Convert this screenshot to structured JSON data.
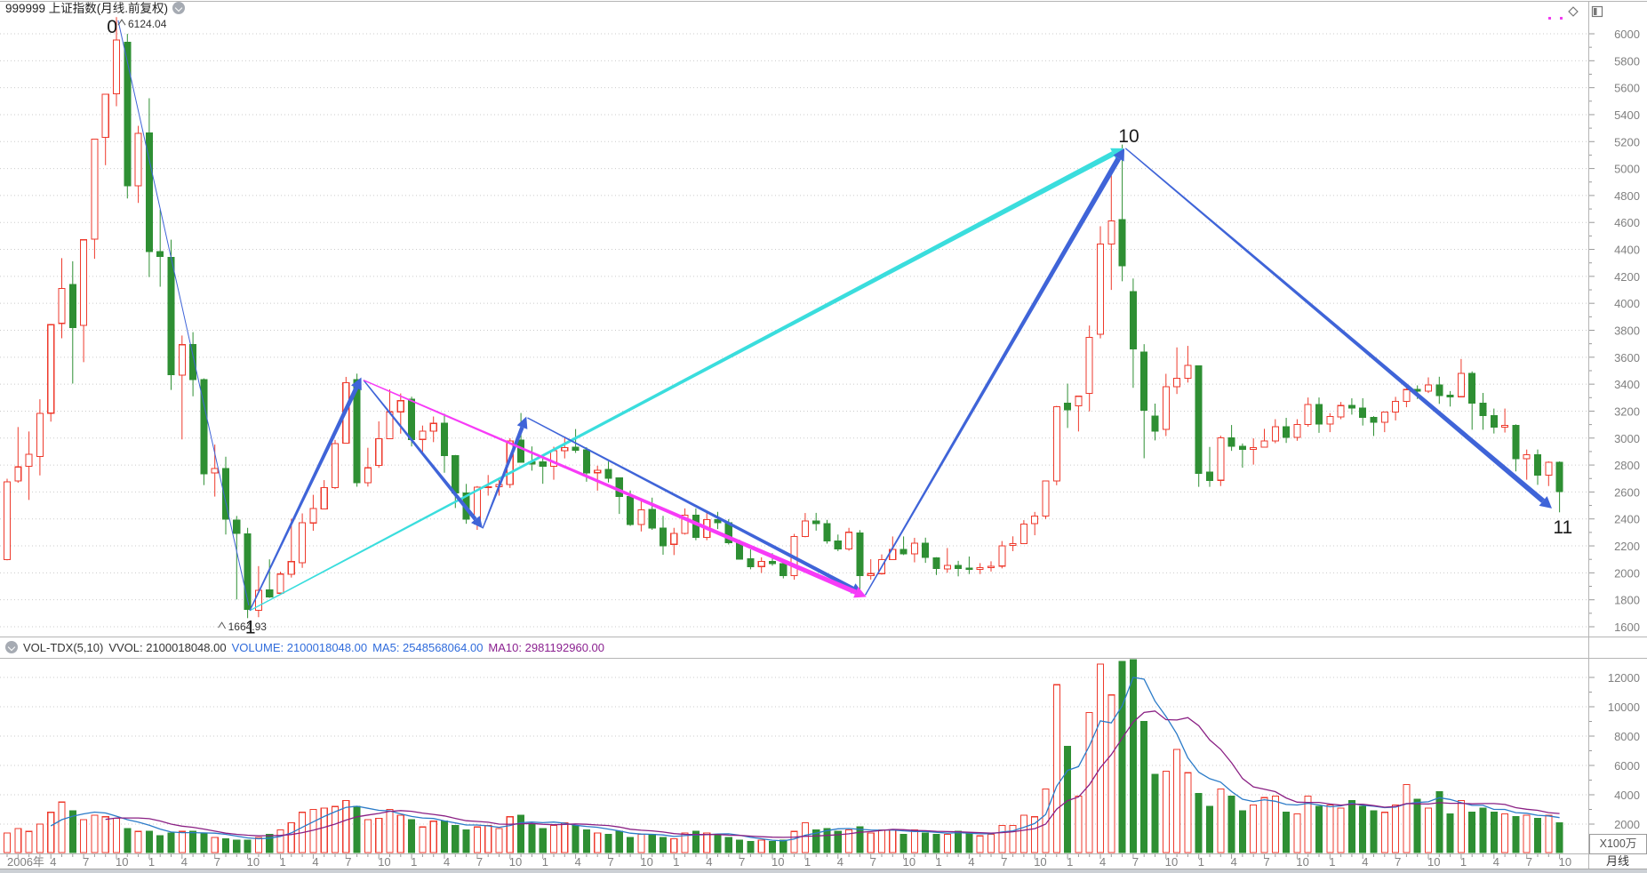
{
  "window": {
    "title": "999999 上证指数(月线.前复权)"
  },
  "volume_panel": {
    "header": {
      "indicator": "VOL-TDX(5,10)",
      "vvol": "VVOL: 2100018048.00",
      "volume": "VOLUME: 2100018048.00",
      "ma5": "MA5: 2548568064.00",
      "ma10": "MA10: 2981192960.00"
    },
    "unit_label": "X100万",
    "period_label": "月线"
  },
  "chart_data": {
    "type": "candlestick",
    "symbol": "999999",
    "name": "上证指数",
    "period": "月线",
    "adjust": "前复权",
    "grid": "horizontal-dotted",
    "price_axis": {
      "min": 1600,
      "max": 6000,
      "step": 200,
      "minor_step": 100
    },
    "volume_axis": {
      "min": 2000,
      "max": 12000,
      "step": 2000,
      "unit": "X100万"
    },
    "colors": {
      "up": "#ee3a2c",
      "down": "#2e8f33",
      "arrow_blue": "#3f64d8",
      "arrow_cyan": "#3adddd",
      "arrow_magenta": "#f73bf7",
      "vol_ma5": "#2b7bc8",
      "vol_ma10": "#8a2084",
      "grid": "#cbcbcb",
      "axis_text": "#808080",
      "tick": "#999999",
      "marker_text": "#333333",
      "point_label": "#1a1a1a"
    },
    "high_marker": {
      "month_index": 10,
      "price": 6124.04,
      "text": "6124.04"
    },
    "low_marker": {
      "month_index": 22,
      "price": 1664.93,
      "text": "1664.93"
    },
    "point_labels": [
      {
        "text": "0",
        "i": 9.6,
        "p": 6007
      },
      {
        "text": "1",
        "i": 22.25,
        "p": 1549
      },
      {
        "text": "10",
        "i": 102.6,
        "p": 5196
      },
      {
        "text": "11",
        "i": 142.3,
        "p": 2294
      }
    ],
    "annotations": [
      {
        "type": "line",
        "color": "arrow_blue",
        "from": [
          10.15,
          6100
        ],
        "to": [
          22.1,
          1760
        ],
        "w": 1
      },
      {
        "type": "arrow",
        "color": "arrow_cyan",
        "from": [
          22.2,
          1720
        ],
        "to": [
          102.1,
          5150
        ],
        "w": 6
      },
      {
        "type": "arrow",
        "color": "arrow_blue",
        "from": [
          22.2,
          1720
        ],
        "to": [
          32.4,
          3450
        ],
        "w": 5
      },
      {
        "type": "arrow",
        "color": "arrow_blue",
        "from": [
          32.6,
          3430
        ],
        "to": [
          43.5,
          2330
        ],
        "w": 4.5
      },
      {
        "type": "arrow",
        "color": "arrow_blue",
        "from": [
          43.5,
          2330
        ],
        "to": [
          47.5,
          3160
        ],
        "w": 4.5
      },
      {
        "type": "arrow",
        "color": "arrow_blue",
        "from": [
          47.6,
          3150
        ],
        "to": [
          78.3,
          1845
        ],
        "w": 4.5
      },
      {
        "type": "arrow",
        "color": "arrow_magenta",
        "from": [
          32.6,
          3430
        ],
        "to": [
          78.6,
          1822
        ],
        "w": 5.5
      },
      {
        "type": "arrow",
        "color": "arrow_blue",
        "from": [
          78.5,
          1835
        ],
        "to": [
          102.2,
          5150
        ],
        "w": 6
      },
      {
        "type": "arrow",
        "color": "arrow_blue",
        "from": [
          102.3,
          5150
        ],
        "to": [
          141.3,
          2478
        ],
        "w": 6
      }
    ],
    "candles": [
      [
        "2006-12",
        2099,
        2698,
        2093,
        2675,
        1400
      ],
      [
        "2007-01",
        2681,
        3082,
        2668,
        2786,
        1700
      ],
      [
        "2007-02",
        2790,
        3049,
        2541,
        2881,
        1500
      ],
      [
        "2007-03",
        2863,
        3288,
        2723,
        3183,
        2000
      ],
      [
        "2007-04",
        3185,
        3847,
        3122,
        3841,
        2800
      ],
      [
        "2007-05",
        3851,
        4335,
        3741,
        4109,
        3500
      ],
      [
        "2007-06",
        4139,
        4312,
        3404,
        3820,
        2900
      ],
      [
        "2007-07",
        3836,
        4471,
        3563,
        4471,
        2300
      ],
      [
        "2007-08",
        4476,
        5218,
        4330,
        5218,
        2600
      ],
      [
        "2007-09",
        5232,
        5552,
        5025,
        5552,
        2500
      ],
      [
        "2007-10",
        5555,
        6124,
        5462,
        5954,
        2400
      ],
      [
        "2007-11",
        5938,
        5999,
        4778,
        4871,
        1700
      ],
      [
        "2007-12",
        4871,
        5317,
        4745,
        5261,
        1500
      ],
      [
        "2008-01",
        5265,
        5522,
        4195,
        4383,
        1500
      ],
      [
        "2008-02",
        4384,
        4695,
        4123,
        4348,
        1200
      ],
      [
        "2008-03",
        4342,
        4472,
        3357,
        3472,
        1400
      ],
      [
        "2008-04",
        3468,
        3761,
        2990,
        3693,
        1500
      ],
      [
        "2008-05",
        3693,
        3786,
        3310,
        3433,
        1500
      ],
      [
        "2008-06",
        3432,
        3443,
        2651,
        2736,
        1400
      ],
      [
        "2008-07",
        2740,
        2952,
        2566,
        2775,
        1100
      ],
      [
        "2008-08",
        2775,
        2862,
        2284,
        2397,
        1000
      ],
      [
        "2008-09",
        2391,
        2422,
        1802,
        2294,
        900
      ],
      [
        "2008-10",
        2288,
        2334,
        1664,
        1729,
        900
      ],
      [
        "2008-11",
        1722,
        2050,
        1671,
        1871,
        1100
      ],
      [
        "2008-12",
        1874,
        2100,
        1814,
        1821,
        1300
      ],
      [
        "2009-01",
        1849,
        2008,
        1844,
        1991,
        1600
      ],
      [
        "2009-02",
        1990,
        2402,
        1965,
        2083,
        2100
      ],
      [
        "2009-03",
        2076,
        2441,
        2037,
        2373,
        2800
      ],
      [
        "2009-04",
        2370,
        2579,
        2312,
        2477,
        3000
      ],
      [
        "2009-05",
        2475,
        2688,
        2475,
        2632,
        3100
      ],
      [
        "2009-06",
        2632,
        2986,
        2622,
        2959,
        3200
      ],
      [
        "2009-07",
        2962,
        3454,
        2961,
        3412,
        3600
      ],
      [
        "2009-08",
        3433,
        3478,
        2639,
        2668,
        3200
      ],
      [
        "2009-09",
        2668,
        2928,
        2640,
        2779,
        2300
      ],
      [
        "2009-10",
        2796,
        3124,
        2779,
        2995,
        2400
      ],
      [
        "2009-11",
        2995,
        3361,
        2995,
        3195,
        3000
      ],
      [
        "2009-12",
        3195,
        3331,
        3033,
        3277,
        2600
      ],
      [
        "2010-01",
        3289,
        3307,
        2938,
        2989,
        2300
      ],
      [
        "2010-02",
        2990,
        3093,
        2890,
        3051,
        1800
      ],
      [
        "2010-03",
        3051,
        3160,
        2970,
        3109,
        2200
      ],
      [
        "2010-04",
        3110,
        3181,
        2743,
        2870,
        2200
      ],
      [
        "2010-05",
        2868,
        2875,
        2481,
        2592,
        1900
      ],
      [
        "2010-06",
        2592,
        2660,
        2364,
        2398,
        1600
      ],
      [
        "2010-07",
        2363,
        2644,
        2319,
        2637,
        1800
      ],
      [
        "2010-08",
        2638,
        2726,
        2573,
        2638,
        1900
      ],
      [
        "2010-09",
        2638,
        2703,
        2573,
        2655,
        1700
      ],
      [
        "2010-10",
        2656,
        2999,
        2630,
        2978,
        2500
      ],
      [
        "2010-11",
        2984,
        3186,
        2821,
        2820,
        2600
      ],
      [
        "2010-12",
        2823,
        2938,
        2758,
        2808,
        2000
      ],
      [
        "2011-01",
        2825,
        2852,
        2661,
        2790,
        1700
      ],
      [
        "2011-02",
        2790,
        2936,
        2691,
        2905,
        1900
      ],
      [
        "2011-03",
        2905,
        3012,
        2849,
        2928,
        2100
      ],
      [
        "2011-04",
        2932,
        3067,
        2890,
        2911,
        1900
      ],
      [
        "2011-05",
        2911,
        2932,
        2676,
        2743,
        1600
      ],
      [
        "2011-06",
        2743,
        2795,
        2610,
        2762,
        1400
      ],
      [
        "2011-07",
        2766,
        2826,
        2670,
        2701,
        1300
      ],
      [
        "2011-08",
        2703,
        2708,
        2437,
        2567,
        1500
      ],
      [
        "2011-09",
        2566,
        2611,
        2348,
        2359,
        1100
      ],
      [
        "2011-10",
        2359,
        2536,
        2307,
        2468,
        1300
      ],
      [
        "2011-11",
        2470,
        2558,
        2319,
        2333,
        1300
      ],
      [
        "2011-12",
        2333,
        2423,
        2134,
        2199,
        1100
      ],
      [
        "2012-01",
        2212,
        2334,
        2132,
        2292,
        1000
      ],
      [
        "2012-02",
        2292,
        2478,
        2284,
        2428,
        1400
      ],
      [
        "2012-03",
        2428,
        2478,
        2242,
        2262,
        1500
      ],
      [
        "2012-04",
        2262,
        2453,
        2242,
        2396,
        1400
      ],
      [
        "2012-05",
        2396,
        2453,
        2325,
        2372,
        1300
      ],
      [
        "2012-06",
        2372,
        2398,
        2210,
        2225,
        1100
      ],
      [
        "2012-07",
        2225,
        2245,
        2100,
        2103,
        900
      ],
      [
        "2012-08",
        2103,
        2174,
        2026,
        2047,
        800
      ],
      [
        "2012-09",
        2047,
        2115,
        1999,
        2086,
        900
      ],
      [
        "2012-10",
        2086,
        2146,
        2053,
        2068,
        800
      ],
      [
        "2012-11",
        2068,
        2099,
        1959,
        1980,
        900
      ],
      [
        "2012-12",
        1980,
        2289,
        1949,
        2269,
        1500
      ],
      [
        "2013-01",
        2269,
        2444,
        2264,
        2385,
        2100
      ],
      [
        "2013-02",
        2385,
        2445,
        2313,
        2365,
        1600
      ],
      [
        "2013-03",
        2365,
        2393,
        2217,
        2237,
        1700
      ],
      [
        "2013-04",
        2237,
        2284,
        2161,
        2177,
        1500
      ],
      [
        "2013-05",
        2177,
        2334,
        2164,
        2301,
        1600
      ],
      [
        "2013-06",
        2295,
        2317,
        1849,
        1979,
        1800
      ],
      [
        "2013-07",
        1979,
        2101,
        1950,
        1994,
        1400
      ],
      [
        "2013-08",
        1994,
        2137,
        1987,
        2098,
        1600
      ],
      [
        "2013-09",
        2098,
        2270,
        2098,
        2175,
        1600
      ],
      [
        "2013-10",
        2175,
        2270,
        2132,
        2141,
        1300
      ],
      [
        "2013-11",
        2141,
        2260,
        2078,
        2220,
        1600
      ],
      [
        "2013-12",
        2221,
        2261,
        2074,
        2116,
        1400
      ],
      [
        "2014-01",
        2112,
        2116,
        1984,
        2033,
        1300
      ],
      [
        "2014-02",
        2030,
        2184,
        2000,
        2056,
        1300
      ],
      [
        "2014-03",
        2055,
        2089,
        1974,
        2033,
        1500
      ],
      [
        "2014-04",
        2035,
        2121,
        1991,
        2026,
        1400
      ],
      [
        "2014-05",
        2026,
        2072,
        1991,
        2039,
        1200
      ],
      [
        "2014-06",
        2038,
        2086,
        2010,
        2048,
        1300
      ],
      [
        "2014-07",
        2050,
        2236,
        2033,
        2201,
        1900
      ],
      [
        "2014-08",
        2204,
        2271,
        2161,
        2217,
        1900
      ],
      [
        "2014-09",
        2216,
        2391,
        2216,
        2363,
        2600
      ],
      [
        "2014-10",
        2364,
        2452,
        2279,
        2420,
        2500
      ],
      [
        "2014-11",
        2422,
        2683,
        2400,
        2682,
        4400
      ],
      [
        "2014-12",
        2682,
        3239,
        2650,
        3234,
        11500
      ],
      [
        "2015-01",
        3258,
        3404,
        3075,
        3210,
        7300
      ],
      [
        "2015-02",
        3239,
        3310,
        3049,
        3310,
        3900
      ],
      [
        "2015-03",
        3332,
        3835,
        3198,
        3747,
        9600
      ],
      [
        "2015-04",
        3771,
        4572,
        3740,
        4441,
        12900
      ],
      [
        "2015-05",
        4441,
        4986,
        4099,
        4611,
        10800
      ],
      [
        "2015-06",
        4620,
        5178,
        4164,
        4277,
        13100
      ],
      [
        "2015-07",
        4086,
        4184,
        3373,
        3663,
        13600
      ],
      [
        "2015-08",
        3638,
        3697,
        2850,
        3205,
        9000
      ],
      [
        "2015-09",
        3163,
        3256,
        2983,
        3052,
        5400
      ],
      [
        "2015-10",
        3065,
        3477,
        3015,
        3382,
        5600
      ],
      [
        "2015-11",
        3382,
        3673,
        3327,
        3445,
        7100
      ],
      [
        "2015-12",
        3445,
        3684,
        3412,
        3539,
        5500
      ],
      [
        "2016-01",
        3536,
        3538,
        2638,
        2737,
        4100
      ],
      [
        "2016-02",
        2747,
        2934,
        2638,
        2687,
        3200
      ],
      [
        "2016-03",
        2687,
        3018,
        2644,
        3003,
        4400
      ],
      [
        "2016-04",
        3003,
        3097,
        2905,
        2938,
        3900
      ],
      [
        "2016-05",
        2938,
        2960,
        2780,
        2916,
        2900
      ],
      [
        "2016-06",
        2916,
        2998,
        2803,
        2929,
        3300
      ],
      [
        "2016-07",
        2932,
        3069,
        2930,
        2979,
        3800
      ],
      [
        "2016-08",
        2979,
        3140,
        2962,
        3085,
        3900
      ],
      [
        "2016-09",
        3085,
        3150,
        2964,
        3004,
        2800
      ],
      [
        "2016-10",
        3004,
        3140,
        2980,
        3100,
        2700
      ],
      [
        "2016-11",
        3100,
        3301,
        3084,
        3250,
        3900
      ],
      [
        "2016-12",
        3250,
        3301,
        3039,
        3103,
        3200
      ],
      [
        "2017-01",
        3105,
        3185,
        3044,
        3159,
        3300
      ],
      [
        "2017-02",
        3156,
        3268,
        3140,
        3241,
        3100
      ],
      [
        "2017-03",
        3241,
        3295,
        3174,
        3222,
        3600
      ],
      [
        "2017-04",
        3222,
        3296,
        3093,
        3154,
        3200
      ],
      [
        "2017-05",
        3154,
        3163,
        3016,
        3117,
        2900
      ],
      [
        "2017-06",
        3117,
        3193,
        3044,
        3192,
        2800
      ],
      [
        "2017-07",
        3192,
        3306,
        3131,
        3273,
        3300
      ],
      [
        "2017-08",
        3273,
        3392,
        3229,
        3360,
        4700
      ],
      [
        "2017-09",
        3360,
        3391,
        3290,
        3348,
        3700
      ],
      [
        "2017-10",
        3348,
        3450,
        3334,
        3393,
        3100
      ],
      [
        "2017-11",
        3393,
        3455,
        3254,
        3317,
        4200
      ],
      [
        "2017-12",
        3317,
        3349,
        3234,
        3307,
        2700
      ],
      [
        "2018-01",
        3307,
        3587,
        3307,
        3480,
        3600
      ],
      [
        "2018-02",
        3480,
        3495,
        3062,
        3259,
        2800
      ],
      [
        "2018-03",
        3259,
        3335,
        3062,
        3168,
        3100
      ],
      [
        "2018-04",
        3168,
        3219,
        3034,
        3082,
        2800
      ],
      [
        "2018-05",
        3082,
        3219,
        3041,
        3095,
        2700
      ],
      [
        "2018-06",
        3095,
        3102,
        2753,
        2847,
        2500
      ],
      [
        "2018-07",
        2847,
        2915,
        2691,
        2876,
        2600
      ],
      [
        "2018-08",
        2876,
        2915,
        2653,
        2725,
        2400
      ],
      [
        "2018-09",
        2725,
        2827,
        2644,
        2821,
        2600
      ],
      [
        "2018-10",
        2821,
        2827,
        2449,
        2602,
        2100
      ]
    ],
    "time_axis": {
      "first_label": "2006年",
      "quarter_months": [
        1,
        4,
        7,
        10
      ]
    }
  }
}
